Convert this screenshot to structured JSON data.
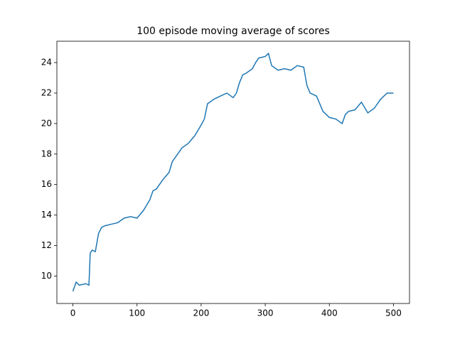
{
  "chart_data": {
    "type": "line",
    "title": "100 episode moving average of scores",
    "x": [
      0,
      5,
      10,
      20,
      25,
      27,
      30,
      35,
      40,
      45,
      50,
      60,
      70,
      80,
      90,
      100,
      110,
      120,
      125,
      130,
      140,
      150,
      155,
      160,
      170,
      180,
      190,
      200,
      205,
      210,
      220,
      230,
      240,
      250,
      255,
      260,
      265,
      270,
      280,
      285,
      290,
      300,
      305,
      310,
      320,
      330,
      340,
      350,
      360,
      365,
      370,
      380,
      390,
      400,
      410,
      420,
      425,
      430,
      440,
      450,
      460,
      470,
      480,
      490,
      500
    ],
    "series": [
      {
        "color": "#1f77b4",
        "values": [
          9.0,
          9.6,
          9.4,
          9.5,
          9.4,
          11.5,
          11.7,
          11.6,
          12.8,
          13.2,
          13.3,
          13.4,
          13.5,
          13.8,
          13.9,
          13.8,
          14.3,
          15.0,
          15.6,
          15.7,
          16.3,
          16.8,
          17.5,
          17.8,
          18.4,
          18.7,
          19.2,
          19.9,
          20.3,
          21.3,
          21.6,
          21.8,
          22.0,
          21.7,
          22.0,
          22.7,
          23.2,
          23.3,
          23.6,
          24.0,
          24.3,
          24.4,
          24.6,
          23.8,
          23.5,
          23.6,
          23.5,
          23.8,
          23.7,
          22.5,
          22.0,
          21.8,
          20.8,
          20.4,
          20.3,
          20.0,
          20.6,
          20.8,
          20.9,
          21.4,
          20.7,
          21.0,
          21.6,
          22.0,
          22.0
        ]
      }
    ],
    "xlim": [
      -25,
      525
    ],
    "ylim": [
      8.2,
      25.4
    ],
    "xticks": [
      0,
      100,
      200,
      300,
      400,
      500
    ],
    "yticks": [
      10,
      12,
      14,
      16,
      18,
      20,
      22,
      24
    ]
  }
}
